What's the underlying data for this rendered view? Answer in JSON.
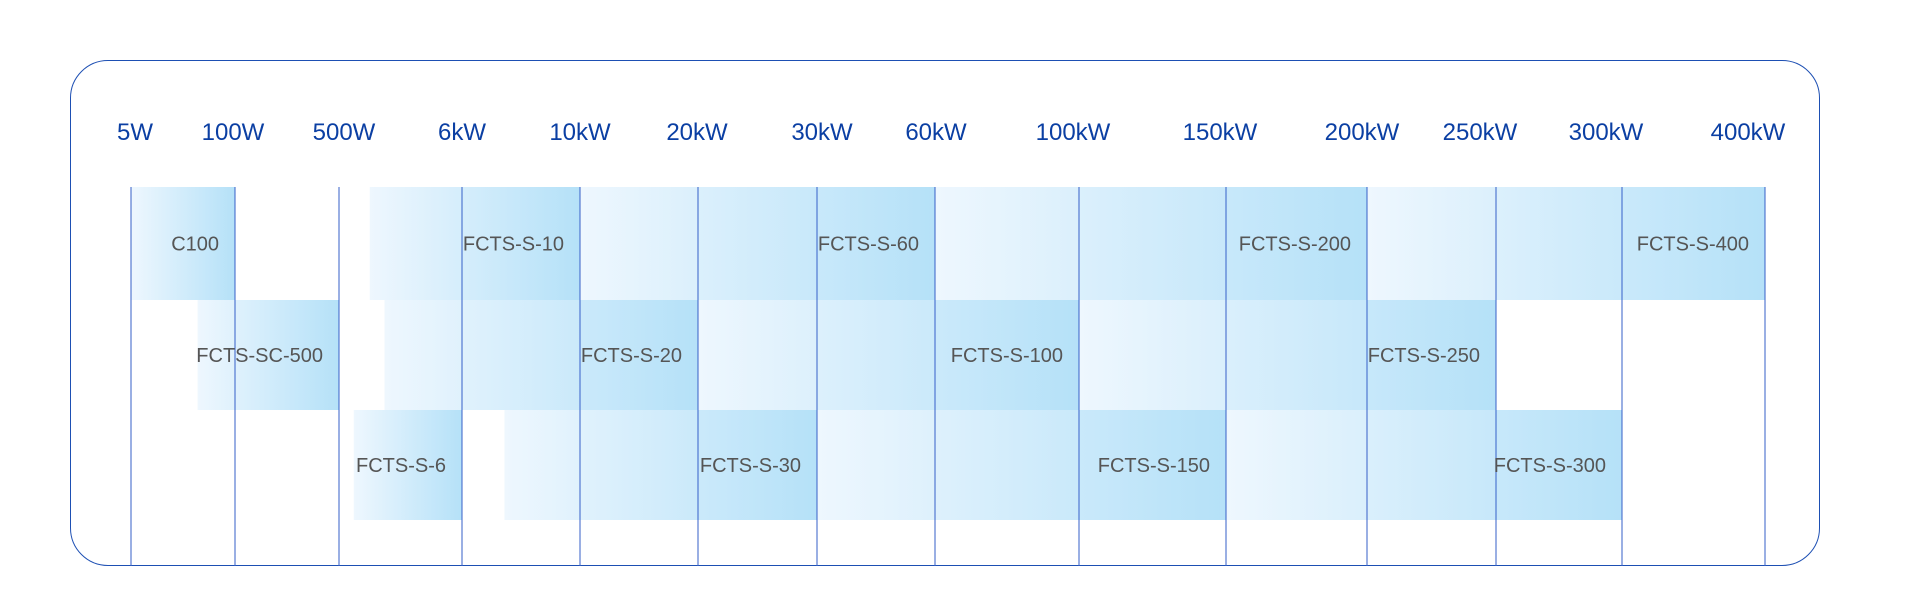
{
  "chart_data": {
    "type": "bar",
    "orientation": "horizontal-range",
    "ticks": [
      "5W",
      "100W",
      "500W",
      "6kW",
      "10kW",
      "20kW",
      "30kW",
      "60kW",
      "100kW",
      "150kW",
      "200kW",
      "250kW",
      "300kW",
      "400kW"
    ],
    "grid": true,
    "colors": {
      "axis_text": "#0b3fa3",
      "frame": "#1d4fb3",
      "grid": "#3a63c9",
      "bar_light": "#eef7fe",
      "bar_dark": "#b5e1f8",
      "label": "#555555"
    },
    "bars": [
      {
        "name": "C100",
        "row": 0,
        "start_tick": 0,
        "end_tick": 1
      },
      {
        "name": "FCTS-S-10",
        "row": 0,
        "start_tick": 2.25,
        "end_tick": 4
      },
      {
        "name": "FCTS-S-60",
        "row": 0,
        "start_tick": 4,
        "end_tick": 7
      },
      {
        "name": "FCTS-S-200",
        "row": 0,
        "start_tick": 7,
        "end_tick": 10
      },
      {
        "name": "FCTS-S-400",
        "row": 0,
        "start_tick": 10,
        "end_tick": 13
      },
      {
        "name": "FCTS-SC-500",
        "row": 1,
        "start_tick": 0.64,
        "end_tick": 2
      },
      {
        "name": "FCTS-S-20",
        "row": 1,
        "start_tick": 2.37,
        "end_tick": 5
      },
      {
        "name": "FCTS-S-100",
        "row": 1,
        "start_tick": 5,
        "end_tick": 8
      },
      {
        "name": "FCTS-S-250",
        "row": 1,
        "start_tick": 8,
        "end_tick": 11
      },
      {
        "name": "FCTS-S-6",
        "row": 2,
        "start_tick": 2.12,
        "end_tick": 3
      },
      {
        "name": "FCTS-S-30",
        "row": 2,
        "start_tick": 3.36,
        "end_tick": 6
      },
      {
        "name": "FCTS-S-150",
        "row": 2,
        "start_tick": 6,
        "end_tick": 9
      },
      {
        "name": "FCTS-S-300",
        "row": 2,
        "start_tick": 9,
        "end_tick": 12
      }
    ]
  }
}
